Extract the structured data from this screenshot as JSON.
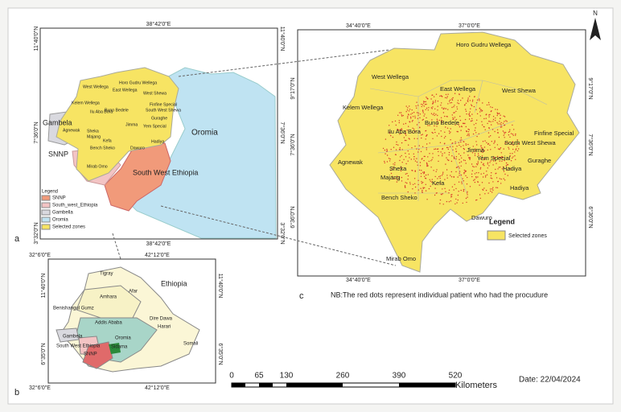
{
  "panel_a": {
    "label": "a",
    "lon_top": "38°42'0\"E",
    "lon_bottom": "38°42'0\"E",
    "lat_left": [
      "11°40'0\"N",
      "7°36'0\"N",
      "3°32'0\"N"
    ],
    "lat_right": [
      "11°40'0\"N",
      "7°36'0\"N",
      "3°32'0\"N"
    ],
    "regions": [
      "Gambela",
      "Oromia",
      "SNNP",
      "South West Ethiopia"
    ],
    "zones": [
      "Horo Gudru Wellega",
      "East Wellega",
      "West Wellega",
      "West Shewa",
      "Kelem Wellega",
      "Ilu Aba Bora",
      "Buno Bedele",
      "Finfine Special",
      "South West Shewa",
      "Guraghe",
      "Agnewak",
      "Sheka",
      "Majang",
      "Jimma",
      "Yem Special",
      "Hadiya",
      "Kefa",
      "Bench Sheko",
      "Dawuro",
      "Mirab Omo"
    ],
    "legend": {
      "title": "Legend",
      "items": [
        "SNNP",
        "South_west_Ethiopia",
        "Gambella",
        "Oromia",
        "Selected zones"
      ]
    }
  },
  "panel_b": {
    "label": "b",
    "lon_top": [
      "32°6'0\"E",
      "42°12'0\"E"
    ],
    "lon_bottom": [
      "32°6'0\"E",
      "42°12'0\"E"
    ],
    "lat_left": [
      "11°40'0\"N",
      "6°35'0\"N"
    ],
    "lat_right": [
      "11°40'0\"N",
      "6°35'0\"N"
    ],
    "country": "Ethiopia",
    "regions": [
      "Tigray",
      "Afar",
      "Amhara",
      "Benishangul Gumz",
      "Addis Ababa",
      "Dire Dawa",
      "Harari",
      "Oromia",
      "Somali",
      "Gambela",
      "South West Ethiopia",
      "Sidama",
      "SNNP"
    ]
  },
  "panel_c": {
    "label": "c",
    "lon_top": [
      "34°40'0\"E",
      "37°0'0\"E"
    ],
    "lon_bottom": [
      "34°40'0\"E",
      "37°0'0\"E"
    ],
    "lat_left": [
      "9°17'0\"N",
      "7°36'0\"N",
      "6°36'0\"N"
    ],
    "lat_right": [
      "9°17'0\"N",
      "7°36'0\"N",
      "6°36'0\"N"
    ],
    "zones": [
      "Horo Gudru Wellega",
      "East Wellega",
      "West Wellega",
      "West Shewa",
      "Kelem Wellega",
      "Ilu Aba Bora",
      "Buno Bedele",
      "Finfine Special",
      "South West Shewa",
      "Guraghe",
      "Agnewak",
      "Sheka",
      "Majang",
      "Jimma",
      "Yem Special",
      "Hadiya",
      "Kefa",
      "Bench Sheko",
      "Dawuro",
      "Hadiya",
      "Mirab Omo"
    ],
    "legend": {
      "title": "Legend",
      "items": [
        "Selected zones"
      ]
    },
    "note": "NB:The red dots represent individual patient who had the procudure"
  },
  "scale_bar": {
    "ticks": [
      "0",
      "65",
      "130",
      "260",
      "390",
      "520"
    ],
    "unit": "Kilometers"
  },
  "date": "Date: 22/04/2024",
  "north": "N"
}
